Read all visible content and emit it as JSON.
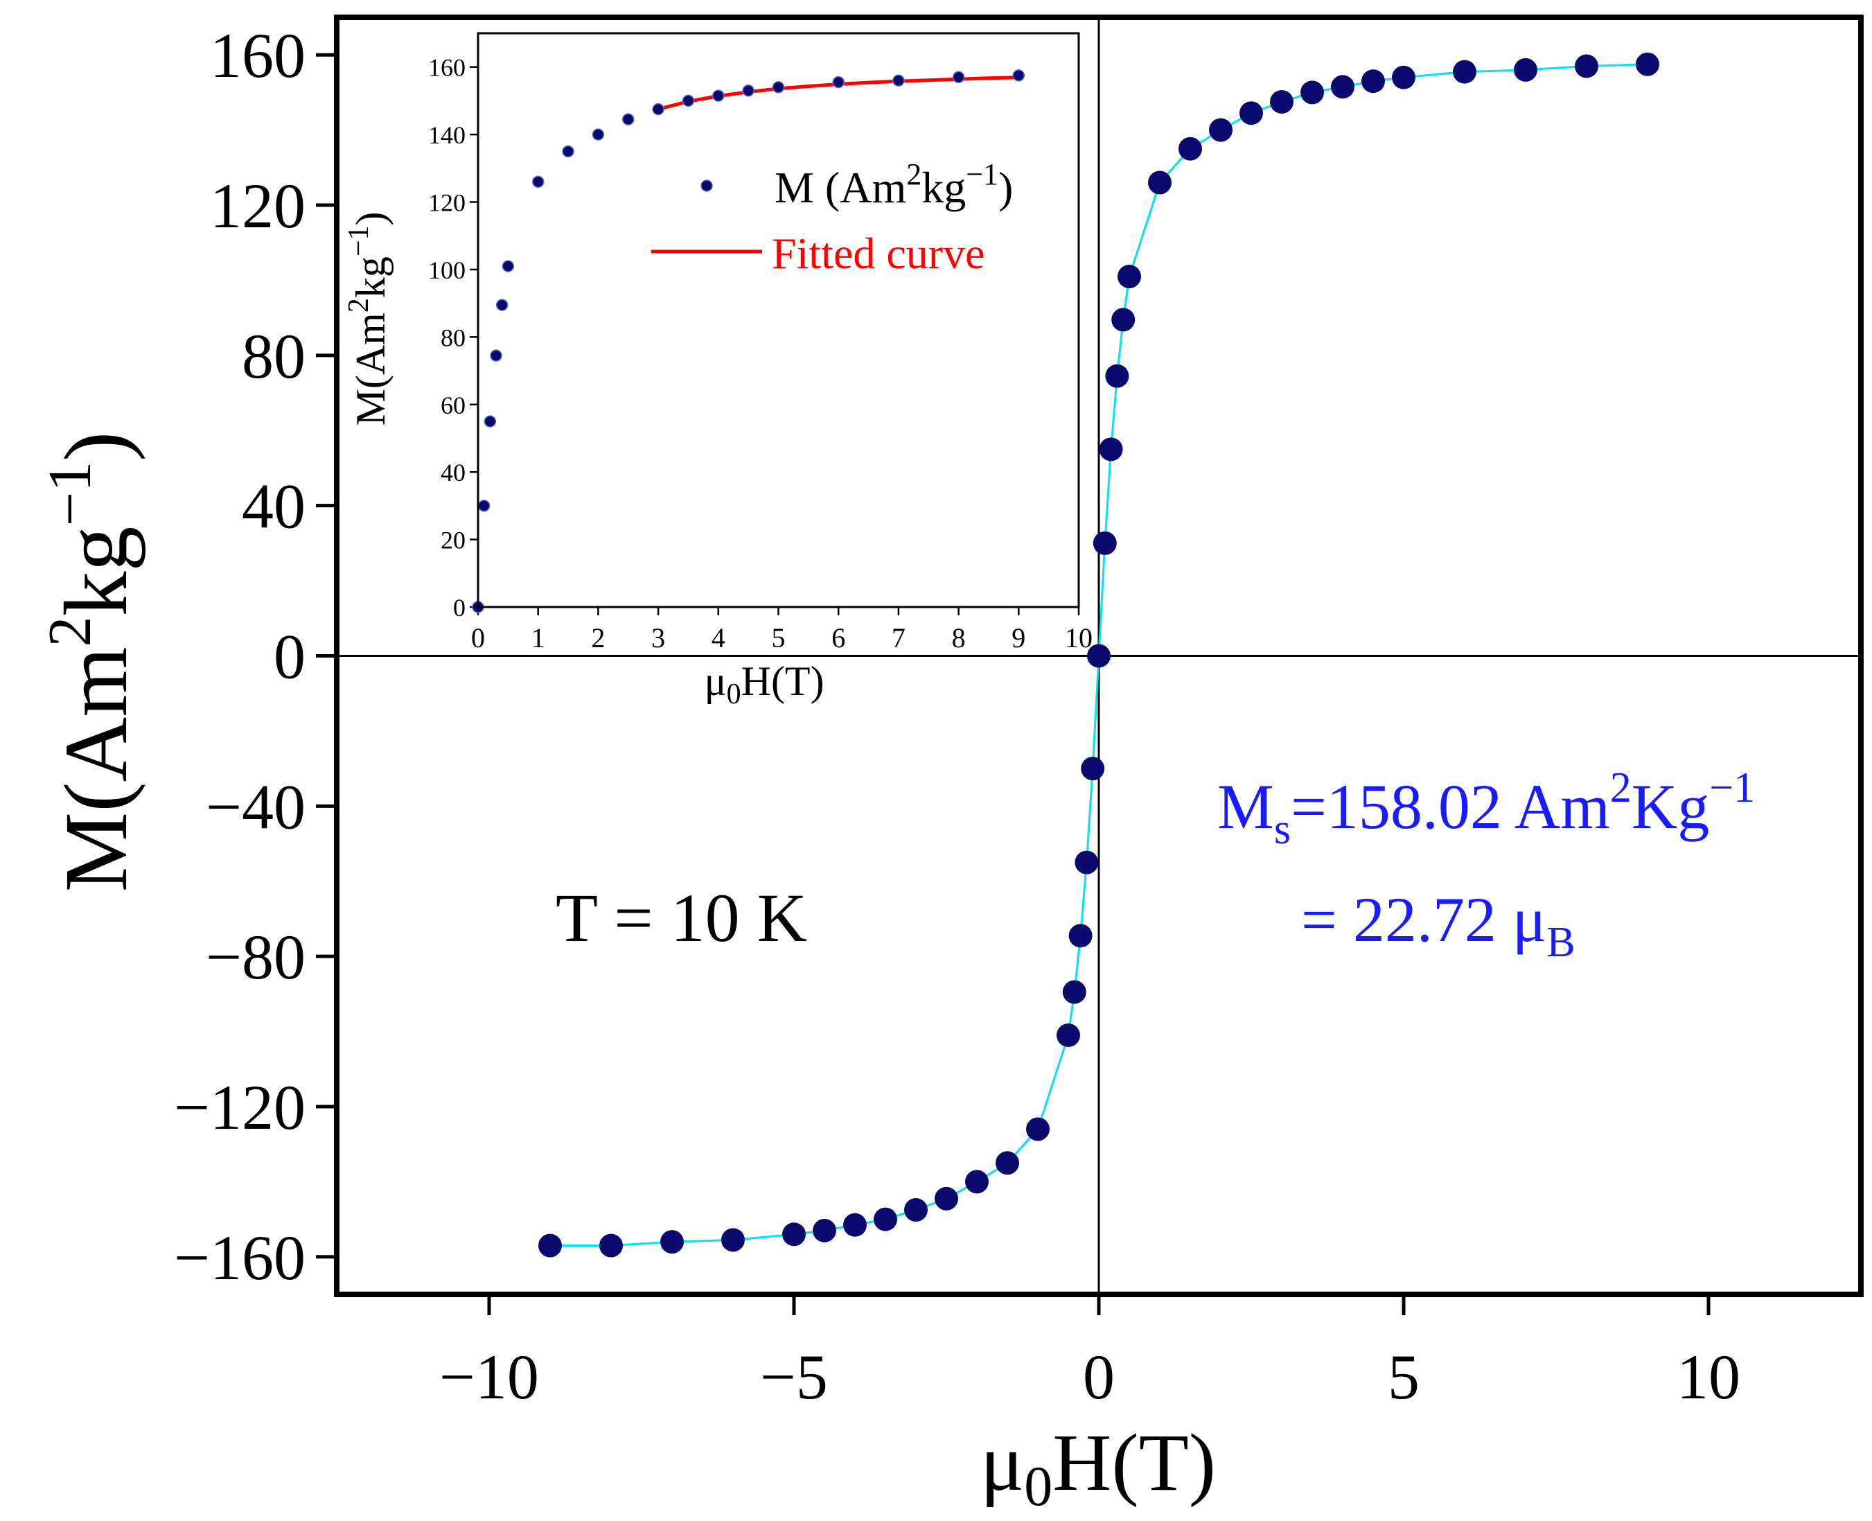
{
  "colors": {
    "marker": "#0a0a6e",
    "line": "#00e5ee",
    "fit": "#ff0000",
    "annotation": "#1a1aff",
    "axis": "#000000"
  },
  "chart_data": [
    {
      "id": "main",
      "type": "scatter",
      "title": "",
      "xlabel": "μ0H(T)",
      "ylabel": "M(Am2kg−1)",
      "xlim": [
        -12.5,
        12.5
      ],
      "ylim": [
        -170,
        170
      ],
      "x_ticks": [
        -10,
        -5,
        0,
        5,
        10
      ],
      "x_tick_labels": [
        "−10",
        "−5",
        "0",
        "5",
        "10"
      ],
      "y_ticks": [
        -160,
        -120,
        -80,
        -40,
        0,
        40,
        80,
        120,
        160
      ],
      "y_tick_labels": [
        "−160",
        "−120",
        "−80",
        "−40",
        "0",
        "40",
        "80",
        "120",
        "160"
      ],
      "series": [
        {
          "name": "M",
          "x": [
            -9,
            -8,
            -7,
            -6,
            -5,
            -4.5,
            -4,
            -3.5,
            -3,
            -2.5,
            -2,
            -1.5,
            -1,
            -0.5,
            -0.4,
            -0.3,
            -0.2,
            -0.1,
            0,
            0.1,
            0.2,
            0.3,
            0.4,
            0.5,
            1,
            1.5,
            2,
            2.5,
            3,
            3.5,
            4,
            4.5,
            5,
            6,
            7,
            8,
            9
          ],
          "y": [
            -157,
            -157,
            -156,
            -155.5,
            -154,
            -153,
            -151.5,
            -150,
            -147.5,
            -144.5,
            -140,
            -135,
            -126,
            -101,
            -89.5,
            -74.5,
            -55,
            -30,
            0,
            30,
            55,
            74.5,
            89.5,
            101,
            126,
            135,
            140,
            144.5,
            147.5,
            150,
            151.5,
            153,
            154,
            155.5,
            156,
            157,
            157.5
          ]
        }
      ],
      "annotations": {
        "temperature": "T = 10 K",
        "ms_prefix": "M",
        "ms_sub": "s",
        "ms_value": "=158.02 Am",
        "ms_sup2": "2",
        "ms_unit": "Kg",
        "ms_sup": "−1",
        "mub_value": "= 22.72 μ",
        "mub_sub": "B"
      }
    },
    {
      "id": "inset",
      "type": "scatter",
      "title": "",
      "xlabel": "μ0H(T)",
      "ylabel": "M(Am2kg−1)",
      "xlim": [
        0,
        10
      ],
      "ylim": [
        0,
        170
      ],
      "x_ticks": [
        0,
        1,
        2,
        3,
        4,
        5,
        6,
        7,
        8,
        9,
        10
      ],
      "x_tick_labels": [
        "0",
        "1",
        "2",
        "3",
        "4",
        "5",
        "6",
        "7",
        "8",
        "9",
        "10"
      ],
      "y_ticks": [
        0,
        20,
        40,
        60,
        80,
        100,
        120,
        140,
        160
      ],
      "y_tick_labels": [
        "0",
        "20",
        "40",
        "60",
        "80",
        "100",
        "120",
        "140",
        "160"
      ],
      "series": [
        {
          "name": "M (Am2kg−1)",
          "x": [
            0,
            0.1,
            0.2,
            0.3,
            0.4,
            0.5,
            1,
            1.5,
            2,
            2.5,
            3,
            3.5,
            4,
            4.5,
            5,
            6,
            7,
            8,
            9
          ],
          "y": [
            0,
            30,
            55,
            74.5,
            89.5,
            101,
            126,
            135,
            140,
            144.5,
            147.5,
            150,
            151.5,
            153,
            154,
            155.5,
            156,
            157,
            157.5
          ]
        },
        {
          "name": "Fitted curve",
          "x": [
            3,
            3.5,
            4,
            4.5,
            5,
            5.5,
            6,
            6.5,
            7,
            7.5,
            8,
            8.5,
            9
          ],
          "y": [
            147.5,
            149.8,
            151.4,
            152.6,
            153.6,
            154.3,
            154.9,
            155.4,
            155.8,
            156.1,
            156.4,
            156.7,
            156.9
          ]
        }
      ],
      "legend": {
        "marker_label": "M (Am",
        "marker_label_sup": "2",
        "marker_label_unit": "kg",
        "marker_label_sup2": "−1",
        "marker_label_close": ")",
        "fit_label": "Fitted curve"
      }
    }
  ]
}
